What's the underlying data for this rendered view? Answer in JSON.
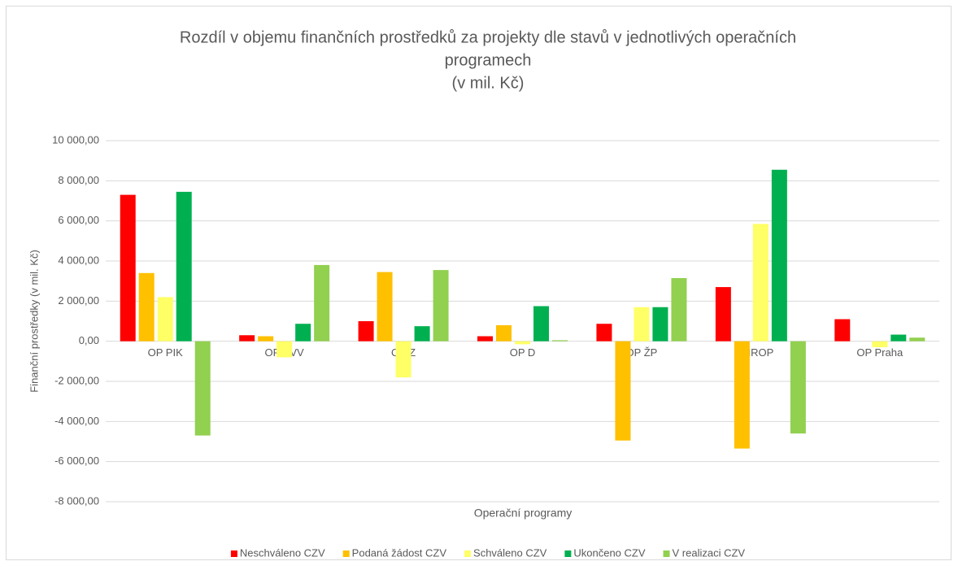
{
  "chart_data": {
    "type": "bar",
    "title": [
      "Rozdíl v objemu finančních prostředků za projekty dle stavů v jednotlivých operačních",
      "programech",
      "(v mil. Kč)"
    ],
    "x_label": "Operační programy",
    "y_label": "Finanční prostředky (v mil. Kč)",
    "categories": [
      "OP PIK",
      "OP VVV",
      "OP Z",
      "OP D",
      "OP ŽP",
      "IROP",
      "OP Praha"
    ],
    "series": [
      {
        "name": "Neschváleno CZV",
        "color": "#ff0000",
        "values": [
          7300,
          300,
          1000,
          250,
          870,
          2700,
          1100
        ]
      },
      {
        "name": "Podaná žádost CZV",
        "color": "#ffc000",
        "values": [
          3400,
          250,
          3450,
          800,
          -4950,
          -5350,
          0
        ]
      },
      {
        "name": "Schváleno CZV",
        "color": "#ffff66",
        "values": [
          2200,
          -800,
          -1800,
          -150,
          1700,
          5850,
          -300
        ]
      },
      {
        "name": "Ukončeno CZV",
        "color": "#00b050",
        "values": [
          7450,
          870,
          750,
          1750,
          1700,
          8550,
          330
        ]
      },
      {
        "name": "V realizaci CZV",
        "color": "#92d050",
        "values": [
          -4700,
          3800,
          3550,
          50,
          3150,
          -4600,
          180
        ]
      }
    ],
    "ylim": [
      -8000,
      10000
    ],
    "yticks": [
      {
        "value": -8000,
        "label": "-8 000,00"
      },
      {
        "value": -6000,
        "label": "-6 000,00"
      },
      {
        "value": -4000,
        "label": "-4 000,00"
      },
      {
        "value": -2000,
        "label": "-2 000,00"
      },
      {
        "value": 0,
        "label": "0,00"
      },
      {
        "value": 2000,
        "label": "2 000,00"
      },
      {
        "value": 4000,
        "label": "4 000,00"
      },
      {
        "value": 6000,
        "label": "6 000,00"
      },
      {
        "value": 8000,
        "label": "8 000,00"
      },
      {
        "value": 10000,
        "label": "10 000,00"
      }
    ],
    "grid": true,
    "legend": "bottom"
  }
}
